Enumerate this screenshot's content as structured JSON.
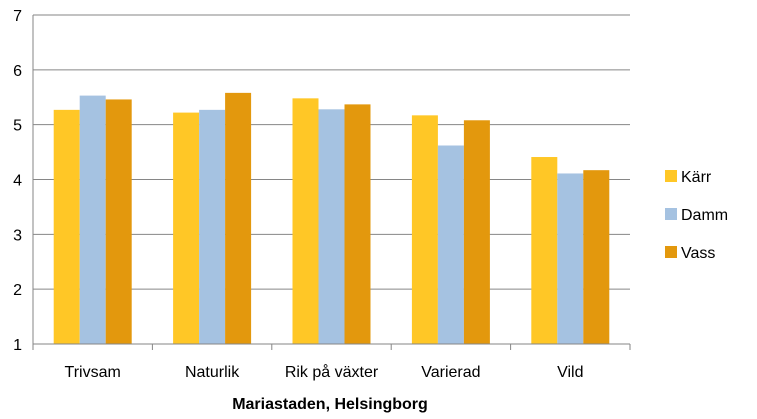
{
  "chart_data": {
    "type": "bar",
    "title": "",
    "xlabel": "Mariastaden,  Helsingborg",
    "ylabel": "",
    "ylim": [
      1,
      7
    ],
    "yticks": [
      "1",
      "2",
      "3",
      "4",
      "5",
      "6",
      "7"
    ],
    "grid": true,
    "legend": "right",
    "categories": [
      "Trivsam",
      "Naturlik",
      "Rik på växter",
      "Varierad",
      "Vild"
    ],
    "series": [
      {
        "name": "Kärr",
        "color": "#FFC726",
        "values": [
          5.27,
          5.22,
          5.48,
          5.17,
          4.41
        ]
      },
      {
        "name": "Damm",
        "color": "#A5C2E1",
        "values": [
          5.53,
          5.27,
          5.28,
          4.62,
          4.11
        ]
      },
      {
        "name": "Vass",
        "color": "#E3980D",
        "values": [
          5.46,
          5.58,
          5.37,
          5.08,
          4.17
        ]
      }
    ]
  }
}
